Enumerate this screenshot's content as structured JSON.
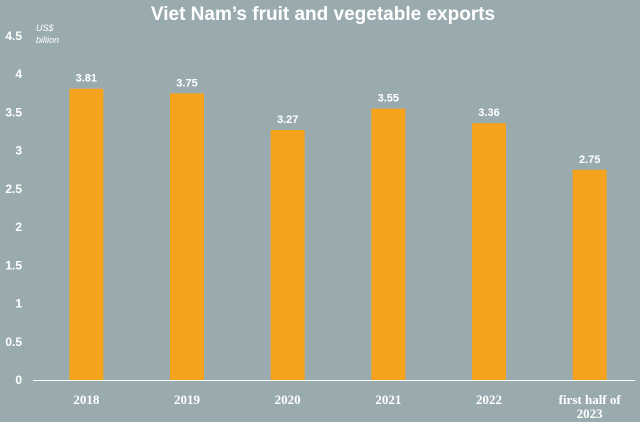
{
  "chart_data": {
    "type": "bar",
    "title": "Viet Nam’s fruit and vegetable exports",
    "unit_label": [
      "US$",
      "billion"
    ],
    "categories": [
      "2018",
      "2019",
      "2020",
      "2021",
      "2022",
      "first half of 2023"
    ],
    "category_lines": [
      [
        "2018"
      ],
      [
        "2019"
      ],
      [
        "2020"
      ],
      [
        "2021"
      ],
      [
        "2022"
      ],
      [
        "first half of",
        "2023"
      ]
    ],
    "values": [
      3.81,
      3.75,
      3.27,
      3.55,
      3.36,
      2.75
    ],
    "value_labels": [
      "3.81",
      "3.75",
      "3.27",
      "3.55",
      "3.36",
      "2.75"
    ],
    "ylim": [
      0,
      4.5
    ],
    "yticks": [
      "0",
      "0.5",
      "1",
      "1.5",
      "2",
      "2.5",
      "3",
      "3.5",
      "4",
      "4.5"
    ],
    "grid": false,
    "bar_color": "#f5a31c",
    "background_color": "#9aabb0"
  }
}
